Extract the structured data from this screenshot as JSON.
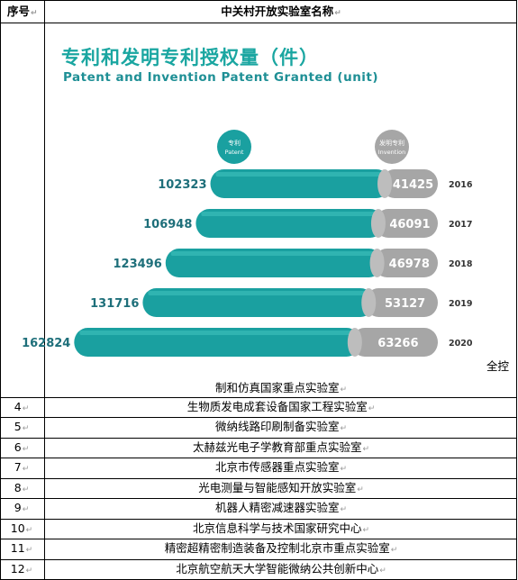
{
  "table": {
    "header_num": "序号",
    "header_name": "中关村开放实验室名称",
    "para_mark": "↵",
    "continuation_text": "制和仿真国家重点实验室",
    "overflow_text": "全控",
    "rows": [
      {
        "num": "4",
        "name": "生物质发电成套设备国家工程实验室"
      },
      {
        "num": "5",
        "name": "微纳线路印刷制备实验室"
      },
      {
        "num": "6",
        "name": "太赫兹光电子学教育部重点实验室"
      },
      {
        "num": "7",
        "name": "北京市传感器重点实验室"
      },
      {
        "num": "8",
        "name": "光电测量与智能感知开放实验室"
      },
      {
        "num": "9",
        "name": "机器人精密减速器实验室"
      },
      {
        "num": "10",
        "name": "北京信息科学与技术国家研究中心"
      },
      {
        "num": "11",
        "name": "精密超精密制造装备及控制北京市重点实验室"
      },
      {
        "num": "12",
        "name": "北京航空航天大学智能微纳公共创新中心"
      }
    ]
  },
  "chart_data": {
    "type": "bar",
    "title": "专利和发明专利授权量（件）",
    "subtitle": "Patent and Invention Patent Granted (unit)",
    "categories": [
      "2016",
      "2017",
      "2018",
      "2019",
      "2020"
    ],
    "series": [
      {
        "name": "专利",
        "name_en": "Patent",
        "values": [
          102323,
          106948,
          123496,
          131716,
          162824
        ],
        "color": "#1aa0a0"
      },
      {
        "name": "发明专利",
        "name_en": "Invention",
        "values": [
          41425,
          46091,
          46978,
          53127,
          63266
        ],
        "color": "#a6a6a6"
      }
    ]
  }
}
